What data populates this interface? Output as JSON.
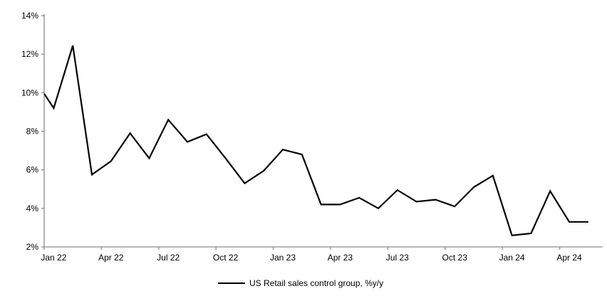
{
  "chart_data": {
    "type": "line",
    "legend": "US Retail sales control group, %y/y",
    "x": [
      "Jan 22",
      "Feb 22",
      "Mar 22",
      "Apr 22",
      "May 22",
      "Jun 22",
      "Jul 22",
      "Aug 22",
      "Sep 22",
      "Oct 22",
      "Nov 22",
      "Dec 22",
      "Jan 23",
      "Feb 23",
      "Mar 23",
      "Apr 23",
      "May 23",
      "Jun 23",
      "Jul 23",
      "Aug 23",
      "Sep 23",
      "Oct 23",
      "Nov 23",
      "Dec 23",
      "Jan 24",
      "Feb 24",
      "Mar 24",
      "Apr 24",
      "May 24"
    ],
    "values": [
      9.2,
      12.45,
      5.75,
      6.45,
      7.9,
      6.6,
      8.6,
      7.45,
      7.85,
      6.6,
      5.3,
      5.95,
      7.05,
      6.8,
      4.2,
      4.2,
      4.55,
      4.0,
      4.95,
      4.35,
      4.45,
      4.1,
      5.1,
      5.7,
      2.6,
      2.7,
      4.9,
      3.3,
      3.3
    ],
    "edge_start_value": 9.95,
    "x_tick_labels": [
      "Jan 22",
      "Apr 22",
      "Jul 22",
      "Oct 22",
      "Jan 23",
      "Apr 23",
      "Jul 23",
      "Oct 23",
      "Jan 24",
      "Apr 24"
    ],
    "y_tick_labels": [
      "2%",
      "4%",
      "6%",
      "8%",
      "10%",
      "12%",
      "14%"
    ],
    "ylim": [
      2,
      14
    ],
    "grid": "off",
    "legend_position": "bottom-center",
    "line_color": "#000000",
    "axis_color": "#8c8c8c"
  }
}
